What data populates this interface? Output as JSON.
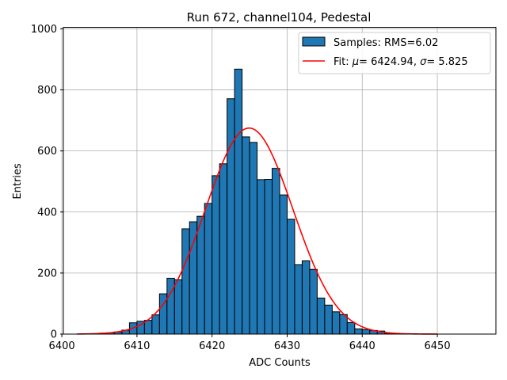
{
  "chart_data": {
    "type": "bar",
    "title": "Run 672, channel104, Pedestal",
    "xlabel": "ADC Counts",
    "ylabel": "Entries",
    "xlim": [
      6400.2,
      6457.8
    ],
    "ylim": [
      0,
      1005
    ],
    "xticks": [
      6400,
      6410,
      6420,
      6430,
      6440,
      6450
    ],
    "yticks": [
      0,
      200,
      400,
      600,
      800,
      1000
    ],
    "grid": true,
    "legend_position": "top-right",
    "histogram": {
      "name": "Samples: RMS=6.02",
      "color": "#1f77b4",
      "bin_width": 1,
      "bin_starts": [
        6404,
        6405,
        6406,
        6407,
        6408,
        6409,
        6410,
        6411,
        6412,
        6413,
        6414,
        6415,
        6416,
        6417,
        6418,
        6419,
        6420,
        6421,
        6422,
        6423,
        6424,
        6425,
        6426,
        6427,
        6428,
        6429,
        6430,
        6431,
        6432,
        6433,
        6434,
        6435,
        6436,
        6437,
        6438,
        6439,
        6440,
        6441,
        6442,
        6443,
        6444
      ],
      "counts": [
        1,
        3,
        4,
        7,
        13,
        37,
        42,
        45,
        63,
        132,
        183,
        178,
        345,
        368,
        386,
        428,
        519,
        558,
        771,
        868,
        646,
        628,
        506,
        507,
        543,
        456,
        376,
        227,
        240,
        212,
        118,
        95,
        73,
        64,
        38,
        17,
        15,
        12,
        10,
        3,
        1
      ]
    },
    "fit": {
      "name": "Fit: μ = 6424.94, σ = 5.825",
      "label_prefix": "Fit: ",
      "mu_symbol": "μ",
      "sigma_symbol": "σ",
      "mu_value": "= 6424.94, ",
      "sigma_value": "= 5.825",
      "color": "#ff0000",
      "mu": 6424.94,
      "sigma": 5.825,
      "amplitude": 675,
      "x_range": [
        6402,
        6450
      ]
    }
  }
}
